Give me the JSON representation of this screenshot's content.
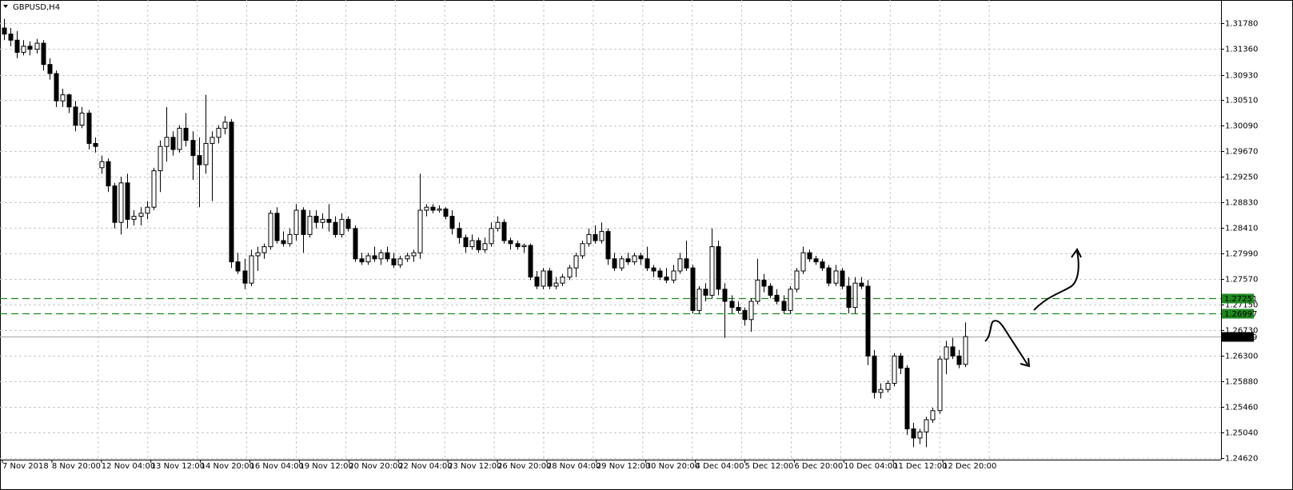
{
  "chart_data": {
    "type": "candlestick",
    "symbol": "GBPUSD,H4",
    "open": [
      1.317,
      1.316,
      1.315,
      1.313,
      1.314,
      1.3135,
      1.3145,
      1.311,
      1.3095,
      1.305,
      1.306,
      1.304,
      1.301,
      1.303,
      1.298,
      1.294,
      1.295,
      1.291,
      1.285,
      1.2915,
      1.2855,
      1.286,
      1.2865,
      1.2875,
      1.2935,
      1.2975,
      1.299,
      1.297,
      1.3005,
      1.2985,
      1.296,
      1.2945,
      1.298,
      1.299,
      1.3005,
      1.3015,
      1.2785,
      1.277,
      1.275,
      1.2795,
      1.28,
      1.281,
      1.2865,
      1.282,
      1.2815,
      1.283,
      1.287,
      1.283,
      1.286,
      1.285,
      1.2855,
      1.285,
      1.283,
      1.2855,
      1.284,
      1.279,
      1.2785,
      1.2795,
      1.279,
      1.28,
      1.279,
      1.278,
      1.279,
      1.2795,
      1.28,
      1.287,
      1.2875,
      1.287,
      1.2872,
      1.286,
      1.284,
      1.2825,
      1.281,
      1.282,
      1.2805,
      1.2815,
      1.284,
      1.285,
      1.282,
      1.2815,
      1.281,
      1.2812,
      1.276,
      1.2745,
      1.277,
      1.2745,
      1.275,
      1.276,
      1.2775,
      1.2795,
      1.2815,
      1.283,
      1.282,
      1.2835,
      1.279,
      1.2775,
      1.279,
      1.2785,
      1.2795,
      1.279,
      1.2775,
      1.277,
      1.276,
      1.2755,
      1.277,
      1.279,
      1.2775,
      1.2705,
      1.274,
      1.273,
      1.281,
      1.274,
      1.272,
      1.271,
      1.2705,
      1.269,
      1.272,
      1.2755,
      1.2745,
      1.273,
      1.272,
      1.2705,
      1.274,
      1.277,
      1.28,
      1.279,
      1.2785,
      1.2775,
      1.275,
      1.277,
      1.2745,
      1.271,
      1.275,
      1.2745,
      1.263,
      1.257,
      1.2575,
      1.2585,
      1.263,
      1.261,
      1.251,
      1.2495,
      1.2505,
      1.2525,
      1.254,
      1.2625,
      1.2645,
      1.263,
      1.26162
    ],
    "high": [
      1.3185,
      1.317,
      1.3165,
      1.315,
      1.3148,
      1.3152,
      1.315,
      1.312,
      1.31,
      1.307,
      1.3062,
      1.305,
      1.304,
      1.3035,
      1.299,
      1.296,
      1.2955,
      1.2915,
      1.2925,
      1.293,
      1.287,
      1.2875,
      1.2885,
      1.294,
      1.2985,
      1.304,
      1.3,
      1.301,
      1.303,
      1.3,
      1.299,
      1.306,
      1.3,
      1.301,
      1.3025,
      1.302,
      1.28,
      1.279,
      1.2805,
      1.281,
      1.2815,
      1.287,
      1.2875,
      1.2835,
      1.284,
      1.288,
      1.2875,
      1.287,
      1.287,
      1.2865,
      1.288,
      1.286,
      1.2865,
      1.286,
      1.2845,
      1.28,
      1.28,
      1.281,
      1.2805,
      1.281,
      1.28,
      1.2795,
      1.28,
      1.2805,
      1.293,
      1.288,
      1.288,
      1.2878,
      1.2875,
      1.287,
      1.285,
      1.283,
      1.283,
      1.2825,
      1.2825,
      1.285,
      1.286,
      1.2855,
      1.2825,
      1.282,
      1.2815,
      1.2815,
      1.277,
      1.2775,
      1.2775,
      1.276,
      1.2765,
      1.278,
      1.28,
      1.282,
      1.284,
      1.2845,
      1.285,
      1.284,
      1.28,
      1.2795,
      1.28,
      1.28,
      1.28,
      1.281,
      1.278,
      1.2775,
      1.2775,
      1.278,
      1.28,
      1.282,
      1.278,
      1.2745,
      1.275,
      1.284,
      1.282,
      1.275,
      1.273,
      1.272,
      1.271,
      1.2725,
      1.279,
      1.2765,
      1.275,
      1.274,
      1.273,
      1.2745,
      1.2775,
      1.281,
      1.2805,
      1.2795,
      1.279,
      1.278,
      1.278,
      1.2775,
      1.276,
      1.276,
      1.276,
      1.2755,
      1.264,
      1.2585,
      1.259,
      1.2635,
      1.2635,
      1.2615,
      1.252,
      1.251,
      1.253,
      1.2545,
      1.263,
      1.2655,
      1.266,
      1.264,
      1.26855
    ],
    "low": [
      1.315,
      1.314,
      1.312,
      1.3125,
      1.3125,
      1.3128,
      1.31,
      1.3085,
      1.304,
      1.304,
      1.303,
      1.3,
      1.3005,
      1.297,
      1.2965,
      1.293,
      1.29,
      1.284,
      1.283,
      1.284,
      1.2845,
      1.2845,
      1.2855,
      1.287,
      1.29,
      1.295,
      1.296,
      1.2965,
      1.2975,
      1.292,
      1.2875,
      1.293,
      1.2885,
      1.298,
      1.2995,
      1.2775,
      1.2765,
      1.274,
      1.2745,
      1.277,
      1.279,
      1.2805,
      1.2815,
      1.281,
      1.281,
      1.282,
      1.28,
      1.2825,
      1.284,
      1.284,
      1.2835,
      1.2825,
      1.2825,
      1.2835,
      1.2785,
      1.278,
      1.278,
      1.2785,
      1.278,
      1.2785,
      1.2775,
      1.2775,
      1.2785,
      1.2785,
      1.279,
      1.286,
      1.2865,
      1.2866,
      1.2855,
      1.283,
      1.2815,
      1.28,
      1.2805,
      1.28,
      1.28,
      1.281,
      1.2835,
      1.2815,
      1.2805,
      1.2805,
      1.28,
      1.2755,
      1.274,
      1.274,
      1.274,
      1.274,
      1.2745,
      1.2755,
      1.276,
      1.279,
      1.281,
      1.2815,
      1.2815,
      1.278,
      1.277,
      1.277,
      1.278,
      1.278,
      1.278,
      1.277,
      1.276,
      1.2755,
      1.275,
      1.275,
      1.2765,
      1.277,
      1.27,
      1.27,
      1.272,
      1.2725,
      1.273,
      1.266,
      1.27,
      1.27,
      1.268,
      1.267,
      1.2715,
      1.2735,
      1.2725,
      1.2715,
      1.27,
      1.27,
      1.2735,
      1.2765,
      1.2785,
      1.278,
      1.277,
      1.2745,
      1.2745,
      1.274,
      1.27,
      1.27,
      1.274,
      1.2615,
      1.256,
      1.256,
      1.257,
      1.258,
      1.26,
      1.25,
      1.248,
      1.2485,
      1.248,
      1.252,
      1.2535,
      1.26,
      1.2625,
      1.261,
      1.26117
    ],
    "close": [
      1.316,
      1.315,
      1.313,
      1.314,
      1.3135,
      1.3145,
      1.311,
      1.3095,
      1.305,
      1.306,
      1.304,
      1.301,
      1.303,
      1.298,
      1.2975,
      1.295,
      1.291,
      1.285,
      1.2915,
      1.2855,
      1.286,
      1.2865,
      1.2875,
      1.2935,
      1.2975,
      1.299,
      1.297,
      1.3005,
      1.2985,
      1.296,
      1.2945,
      1.298,
      1.299,
      1.3005,
      1.3015,
      1.2785,
      1.277,
      1.275,
      1.2795,
      1.28,
      1.281,
      1.2865,
      1.282,
      1.2815,
      1.283,
      1.287,
      1.283,
      1.286,
      1.285,
      1.2855,
      1.285,
      1.283,
      1.2855,
      1.284,
      1.279,
      1.2785,
      1.2795,
      1.279,
      1.28,
      1.279,
      1.278,
      1.279,
      1.2795,
      1.28,
      1.287,
      1.2875,
      1.287,
      1.2872,
      1.286,
      1.284,
      1.2825,
      1.281,
      1.282,
      1.2805,
      1.2815,
      1.284,
      1.285,
      1.282,
      1.2815,
      1.281,
      1.2812,
      1.276,
      1.2745,
      1.277,
      1.2745,
      1.275,
      1.276,
      1.2775,
      1.2795,
      1.2815,
      1.283,
      1.282,
      1.2835,
      1.279,
      1.2775,
      1.279,
      1.2785,
      1.2795,
      1.279,
      1.2775,
      1.277,
      1.276,
      1.2755,
      1.277,
      1.279,
      1.2775,
      1.2705,
      1.274,
      1.273,
      1.281,
      1.274,
      1.272,
      1.271,
      1.2705,
      1.269,
      1.272,
      1.2755,
      1.2745,
      1.273,
      1.272,
      1.2705,
      1.274,
      1.277,
      1.28,
      1.279,
      1.2785,
      1.2775,
      1.275,
      1.277,
      1.2745,
      1.271,
      1.275,
      1.2745,
      1.263,
      1.257,
      1.2575,
      1.2585,
      1.263,
      1.261,
      1.251,
      1.2495,
      1.2505,
      1.2525,
      1.254,
      1.2625,
      1.2645,
      1.263,
      1.2616,
      1.26619
    ],
    "x_labels": [
      "7 Nov 2018",
      "8 Nov 20:00",
      "12 Nov 04:00",
      "13 Nov 12:00",
      "14 Nov 20:00",
      "16 Nov 04:00",
      "19 Nov 12:00",
      "20 Nov 20:00",
      "22 Nov 04:00",
      "23 Nov 12:00",
      "26 Nov 20:00",
      "28 Nov 04:00",
      "29 Nov 12:00",
      "30 Nov 20:00",
      "4 Dec 04:00",
      "5 Dec 12:00",
      "6 Dec 20:00",
      "10 Dec 04:00",
      "11 Dec 12:00",
      "12 Dec 20:00"
    ],
    "ylim": [
      1.24594,
      1.32135
    ],
    "yticks": [
      {
        "value": 1.3178,
        "label": "1.31780"
      },
      {
        "value": 1.3136,
        "label": "1.31360"
      },
      {
        "value": 1.3093,
        "label": "1.30930"
      },
      {
        "value": 1.3051,
        "label": "1.30510"
      },
      {
        "value": 1.3009,
        "label": "1.30090"
      },
      {
        "value": 1.2967,
        "label": "1.29670"
      },
      {
        "value": 1.2925,
        "label": "1.29250"
      },
      {
        "value": 1.2883,
        "label": "1.28830"
      },
      {
        "value": 1.2841,
        "label": "1.28410"
      },
      {
        "value": 1.2799,
        "label": "1.27990"
      },
      {
        "value": 1.2757,
        "label": "1.27570"
      },
      {
        "value": 1.2715,
        "label": "1.27150"
      },
      {
        "value": 1.2673,
        "label": "1.26730"
      },
      {
        "value": 1.263,
        "label": "1.26300"
      },
      {
        "value": 1.2588,
        "label": "1.25880"
      },
      {
        "value": 1.2546,
        "label": "1.25460"
      },
      {
        "value": 1.2504,
        "label": "1.25040"
      },
      {
        "value": 1.2462,
        "label": "1.24620"
      }
    ],
    "levels": [
      {
        "value": 1.27251,
        "color": "#1f8a1f"
      },
      {
        "value": 1.26997,
        "color": "#1f8a1f"
      }
    ],
    "current": {
      "value": 1.26619,
      "color": "#000000"
    },
    "grid": true
  }
}
